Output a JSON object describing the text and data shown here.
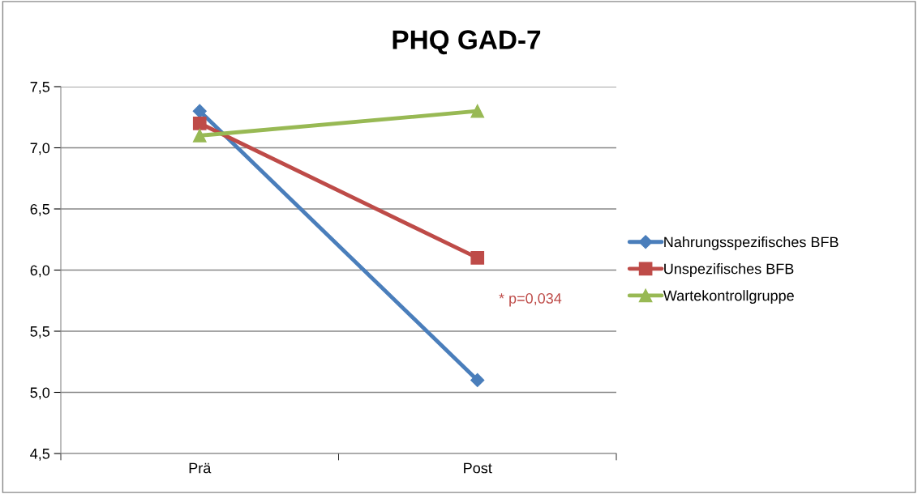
{
  "chart_data": {
    "type": "line",
    "title": "PHQ GAD-7",
    "categories": [
      "Prä",
      "Post"
    ],
    "series": [
      {
        "name": "Nahrungsspezifisches BFB",
        "color": "#4a7ebb",
        "marker": "diamond",
        "values": [
          7.3,
          5.1
        ]
      },
      {
        "name": "Unspezifisches BFB",
        "color": "#be4b48",
        "marker": "square",
        "values": [
          7.2,
          6.1
        ]
      },
      {
        "name": "Wartekontrollgruppe",
        "color": "#98b954",
        "marker": "triangle",
        "values": [
          7.1,
          7.3
        ]
      }
    ],
    "ylim": [
      4.5,
      7.5
    ],
    "yticks": [
      {
        "value": 4.5,
        "label": "4,5"
      },
      {
        "value": 5.0,
        "label": "5,0"
      },
      {
        "value": 5.5,
        "label": "5,5"
      },
      {
        "value": 6.0,
        "label": "6,0"
      },
      {
        "value": 6.5,
        "label": "6,5"
      },
      {
        "value": 7.0,
        "label": "7,0"
      },
      {
        "value": 7.5,
        "label": "7,5"
      }
    ],
    "annotations": [
      "* p=0,034"
    ],
    "grid": "y",
    "legend": "right",
    "line_style": "solid"
  }
}
